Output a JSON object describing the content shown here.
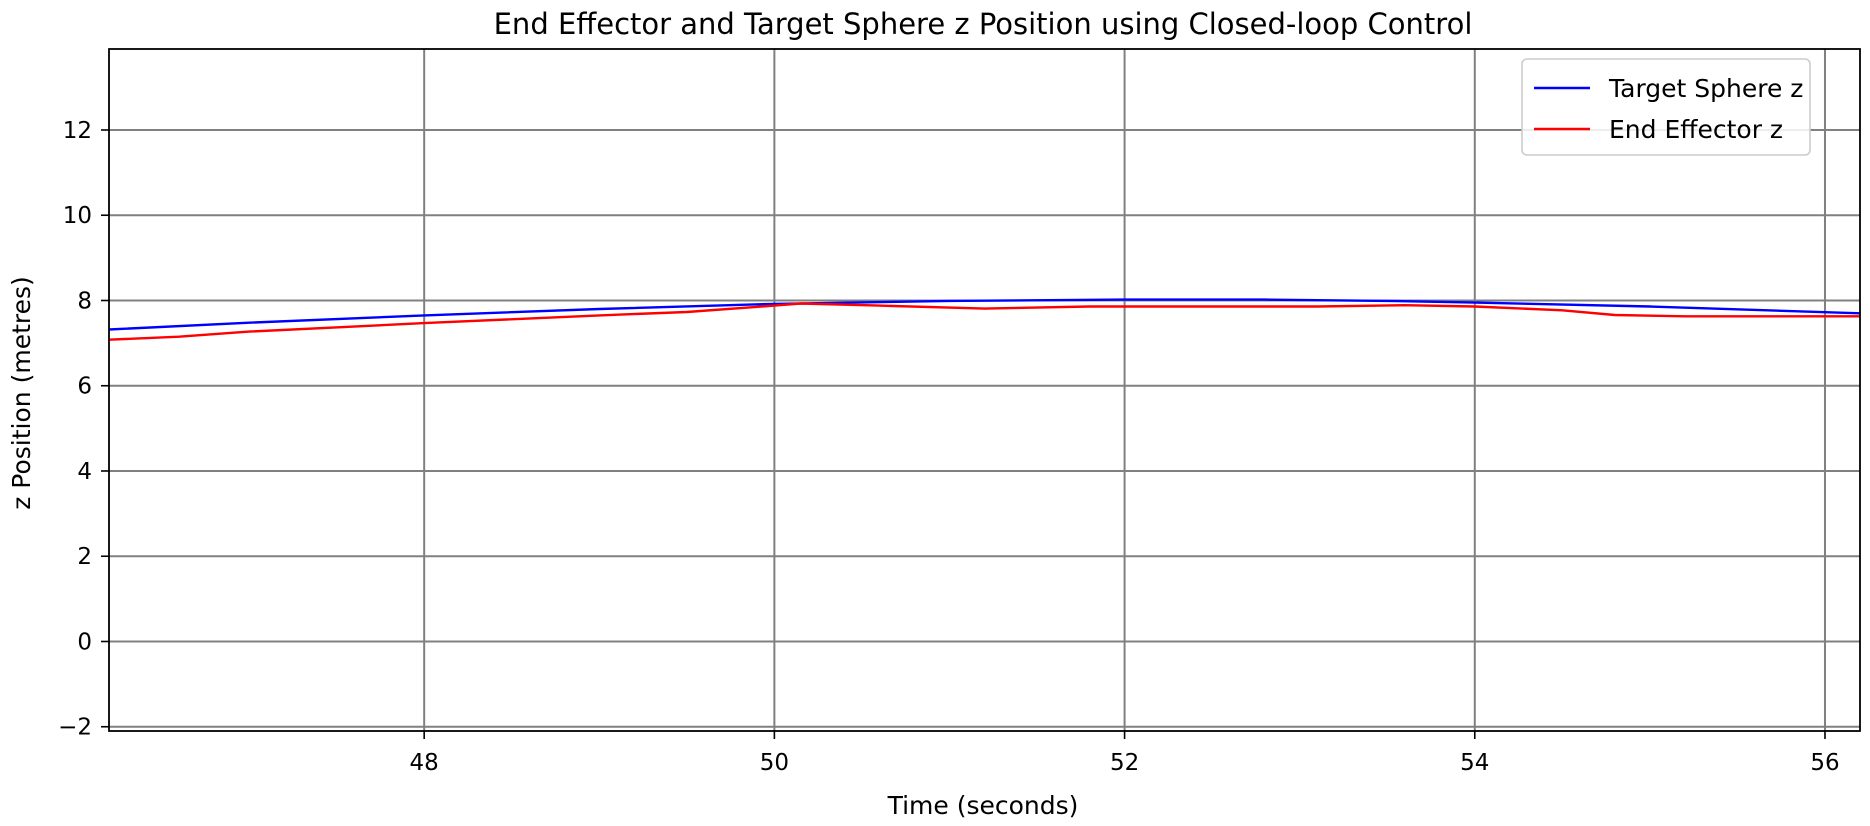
{
  "chart_data": {
    "type": "line",
    "title": "End Effector and Target Sphere z Position using Closed-loop Control",
    "xlabel": "Time (seconds)",
    "ylabel": "z Position (metres)",
    "xlim": [
      46.2,
      56.2
    ],
    "ylim": [
      -2.1,
      13.9
    ],
    "xticks": [
      48,
      50,
      52,
      54,
      56
    ],
    "xtick_labels": [
      "48",
      "50",
      "52",
      "54",
      "56"
    ],
    "yticks": [
      -2,
      0,
      2,
      4,
      6,
      8,
      10,
      12
    ],
    "ytick_labels": [
      "−2",
      "0",
      "2",
      "4",
      "6",
      "8",
      "10",
      "12"
    ],
    "grid": true,
    "legend_position": "top-right",
    "series": [
      {
        "name": "Target Sphere z",
        "color": "#0000ff",
        "x": [
          46.2,
          47.0,
          48.0,
          49.0,
          50.0,
          51.0,
          52.0,
          52.8,
          53.5,
          54.0,
          55.0,
          56.2
        ],
        "y": [
          7.32,
          7.48,
          7.65,
          7.8,
          7.92,
          7.99,
          8.02,
          8.02,
          7.99,
          7.95,
          7.86,
          7.7
        ]
      },
      {
        "name": "End Effector z",
        "color": "#ff0000",
        "x": [
          46.2,
          46.6,
          47.0,
          48.0,
          49.0,
          49.5,
          50.0,
          50.15,
          50.6,
          51.2,
          51.8,
          52.5,
          53.1,
          53.6,
          54.0,
          54.5,
          54.8,
          55.2,
          56.2
        ],
        "y": [
          7.08,
          7.15,
          7.27,
          7.47,
          7.65,
          7.73,
          7.88,
          7.93,
          7.88,
          7.81,
          7.86,
          7.86,
          7.86,
          7.89,
          7.86,
          7.77,
          7.66,
          7.63,
          7.63
        ]
      }
    ]
  }
}
